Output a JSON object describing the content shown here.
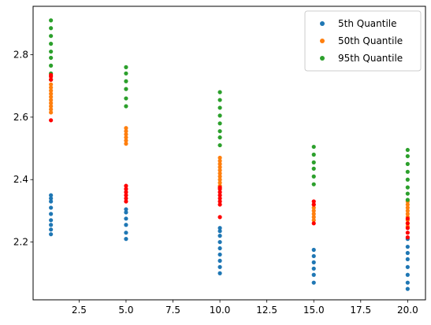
{
  "chart_data": {
    "type": "scatter",
    "title": "",
    "xlabel": "",
    "ylabel": "",
    "xlim": [
      0.05,
      20.95
    ],
    "ylim": [
      2.015,
      2.955
    ],
    "xticks": [
      2.5,
      5.0,
      7.5,
      10.0,
      12.5,
      15.0,
      17.5,
      20.0
    ],
    "xtick_labels": [
      "2.5",
      "5.0",
      "7.5",
      "10.0",
      "12.5",
      "15.0",
      "17.5",
      "20.0"
    ],
    "yticks": [
      2.2,
      2.4,
      2.6,
      2.8
    ],
    "ytick_labels": [
      "2.2",
      "2.4",
      "2.6",
      "2.8"
    ],
    "grid": false,
    "legend_position": "upper right",
    "series": [
      {
        "name": "5th Quantile",
        "color": "#1f77b4",
        "in_legend": true,
        "points": [
          [
            1,
            2.225
          ],
          [
            1,
            2.24
          ],
          [
            1,
            2.255
          ],
          [
            1,
            2.27
          ],
          [
            1,
            2.29
          ],
          [
            1,
            2.31
          ],
          [
            1,
            2.33
          ],
          [
            1,
            2.34
          ],
          [
            1,
            2.35
          ],
          [
            5,
            2.21
          ],
          [
            5,
            2.23
          ],
          [
            5,
            2.255
          ],
          [
            5,
            2.275
          ],
          [
            5,
            2.295
          ],
          [
            5,
            2.305
          ],
          [
            10,
            2.1
          ],
          [
            10,
            2.12
          ],
          [
            10,
            2.14
          ],
          [
            10,
            2.16
          ],
          [
            10,
            2.18
          ],
          [
            10,
            2.2
          ],
          [
            10,
            2.22
          ],
          [
            10,
            2.235
          ],
          [
            10,
            2.245
          ],
          [
            15,
            2.07
          ],
          [
            15,
            2.095
          ],
          [
            15,
            2.115
          ],
          [
            15,
            2.135
          ],
          [
            15,
            2.155
          ],
          [
            15,
            2.175
          ],
          [
            20,
            2.05
          ],
          [
            20,
            2.07
          ],
          [
            20,
            2.095
          ],
          [
            20,
            2.12
          ],
          [
            20,
            2.145
          ],
          [
            20,
            2.165
          ],
          [
            20,
            2.185
          ],
          [
            20,
            2.21
          ]
        ]
      },
      {
        "name": "50th Quantile",
        "color": "#ff7f0e",
        "in_legend": true,
        "points": [
          [
            1,
            2.615
          ],
          [
            1,
            2.625
          ],
          [
            1,
            2.635
          ],
          [
            1,
            2.645
          ],
          [
            1,
            2.655
          ],
          [
            1,
            2.665
          ],
          [
            1,
            2.675
          ],
          [
            1,
            2.685
          ],
          [
            1,
            2.695
          ],
          [
            1,
            2.705
          ],
          [
            5,
            2.515
          ],
          [
            5,
            2.525
          ],
          [
            5,
            2.535
          ],
          [
            5,
            2.545
          ],
          [
            5,
            2.555
          ],
          [
            5,
            2.565
          ],
          [
            10,
            2.38
          ],
          [
            10,
            2.39
          ],
          [
            10,
            2.4
          ],
          [
            10,
            2.41
          ],
          [
            10,
            2.42
          ],
          [
            10,
            2.43
          ],
          [
            10,
            2.44
          ],
          [
            10,
            2.45
          ],
          [
            10,
            2.46
          ],
          [
            10,
            2.47
          ],
          [
            15,
            2.27
          ],
          [
            15,
            2.28
          ],
          [
            15,
            2.29
          ],
          [
            15,
            2.3
          ],
          [
            15,
            2.31
          ],
          [
            15,
            2.32
          ],
          [
            20,
            2.25
          ],
          [
            20,
            2.26
          ],
          [
            20,
            2.27
          ],
          [
            20,
            2.28
          ],
          [
            20,
            2.29
          ],
          [
            20,
            2.3
          ],
          [
            20,
            2.31
          ],
          [
            20,
            2.32
          ],
          [
            20,
            2.33
          ]
        ]
      },
      {
        "name": "95th Quantile",
        "color": "#2ca02c",
        "in_legend": true,
        "points": [
          [
            1,
            2.72
          ],
          [
            1,
            2.74
          ],
          [
            1,
            2.765
          ],
          [
            1,
            2.79
          ],
          [
            1,
            2.81
          ],
          [
            1,
            2.835
          ],
          [
            1,
            2.86
          ],
          [
            1,
            2.885
          ],
          [
            1,
            2.91
          ],
          [
            5,
            2.635
          ],
          [
            5,
            2.66
          ],
          [
            5,
            2.69
          ],
          [
            5,
            2.715
          ],
          [
            5,
            2.74
          ],
          [
            5,
            2.76
          ],
          [
            10,
            2.51
          ],
          [
            10,
            2.535
          ],
          [
            10,
            2.555
          ],
          [
            10,
            2.58
          ],
          [
            10,
            2.605
          ],
          [
            10,
            2.63
          ],
          [
            10,
            2.655
          ],
          [
            10,
            2.68
          ],
          [
            15,
            2.385
          ],
          [
            15,
            2.41
          ],
          [
            15,
            2.435
          ],
          [
            15,
            2.455
          ],
          [
            15,
            2.48
          ],
          [
            15,
            2.505
          ],
          [
            20,
            2.335
          ],
          [
            20,
            2.355
          ],
          [
            20,
            2.375
          ],
          [
            20,
            2.4
          ],
          [
            20,
            2.425
          ],
          [
            20,
            2.45
          ],
          [
            20,
            2.475
          ],
          [
            20,
            2.495
          ]
        ]
      },
      {
        "name": "",
        "color": "#ff0000",
        "in_legend": false,
        "points": [
          [
            1,
            2.59
          ],
          [
            1,
            2.72
          ],
          [
            1,
            2.73
          ],
          [
            1,
            2.735
          ],
          [
            5,
            2.33
          ],
          [
            5,
            2.34
          ],
          [
            5,
            2.35
          ],
          [
            5,
            2.36
          ],
          [
            5,
            2.37
          ],
          [
            5,
            2.38
          ],
          [
            10,
            2.28
          ],
          [
            10,
            2.32
          ],
          [
            10,
            2.33
          ],
          [
            10,
            2.34
          ],
          [
            10,
            2.35
          ],
          [
            10,
            2.36
          ],
          [
            10,
            2.37
          ],
          [
            10,
            2.375
          ],
          [
            15,
            2.26
          ],
          [
            15,
            2.32
          ],
          [
            15,
            2.33
          ],
          [
            20,
            2.215
          ],
          [
            20,
            2.23
          ],
          [
            20,
            2.245
          ],
          [
            20,
            2.26
          ],
          [
            20,
            2.275
          ]
        ]
      }
    ]
  }
}
